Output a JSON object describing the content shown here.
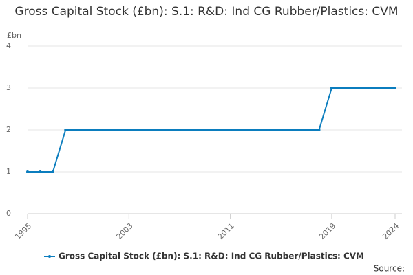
{
  "chart_data": {
    "type": "line",
    "title": "Gross Capital Stock (£bn): S.1: R&D: Ind CG Rubber/Plastics: CVM",
    "y_axis_label": "£bn",
    "x": [
      1995,
      1996,
      1997,
      1998,
      1999,
      2000,
      2001,
      2002,
      2003,
      2004,
      2005,
      2006,
      2007,
      2008,
      2009,
      2010,
      2011,
      2012,
      2013,
      2014,
      2015,
      2016,
      2017,
      2018,
      2019,
      2020,
      2021,
      2022,
      2023,
      2024
    ],
    "series": [
      {
        "name": "Gross Capital Stock (£bn): S.1: R&D: Ind CG Rubber/Plastics: CVM",
        "color": "#0b7dbe",
        "values": [
          1,
          1,
          1,
          2,
          2,
          2,
          2,
          2,
          2,
          2,
          2,
          2,
          2,
          2,
          2,
          2,
          2,
          2,
          2,
          2,
          2,
          2,
          2,
          2,
          3,
          3,
          3,
          3,
          3,
          3
        ]
      }
    ],
    "xlim": [
      1995,
      2024
    ],
    "xticks": [
      1995,
      2003,
      2011,
      2019,
      2024
    ],
    "ylim": [
      0,
      4
    ],
    "yticks": [
      0,
      1,
      2,
      3,
      4
    ],
    "grid": true,
    "source_label": "Source:"
  }
}
